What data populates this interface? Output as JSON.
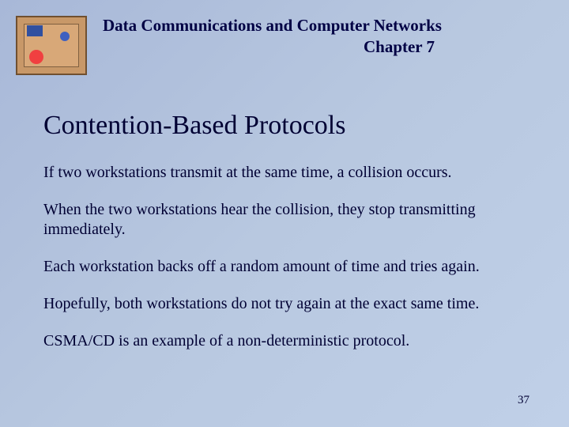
{
  "header": {
    "course_title": "Data Communications and Computer Networks",
    "chapter": "Chapter 7"
  },
  "content": {
    "heading": "Contention-Based Protocols",
    "paragraphs": [
      "If two workstations transmit at the same time, a collision occurs.",
      "When the two workstations hear the collision, they stop transmitting immediately.",
      "Each workstation backs off a random amount of time and tries again.",
      "Hopefully, both workstations do not try again at the exact same time.",
      "CSMA/CD is an example of a non-deterministic protocol."
    ]
  },
  "footer": {
    "slide_number": "37"
  },
  "styling": {
    "background_gradient_start": "#a8b8d8",
    "background_gradient_end": "#c0d0e8",
    "text_color": "#000033",
    "heading_fontsize": 34,
    "body_fontsize": 20,
    "header_fontsize": 21
  }
}
